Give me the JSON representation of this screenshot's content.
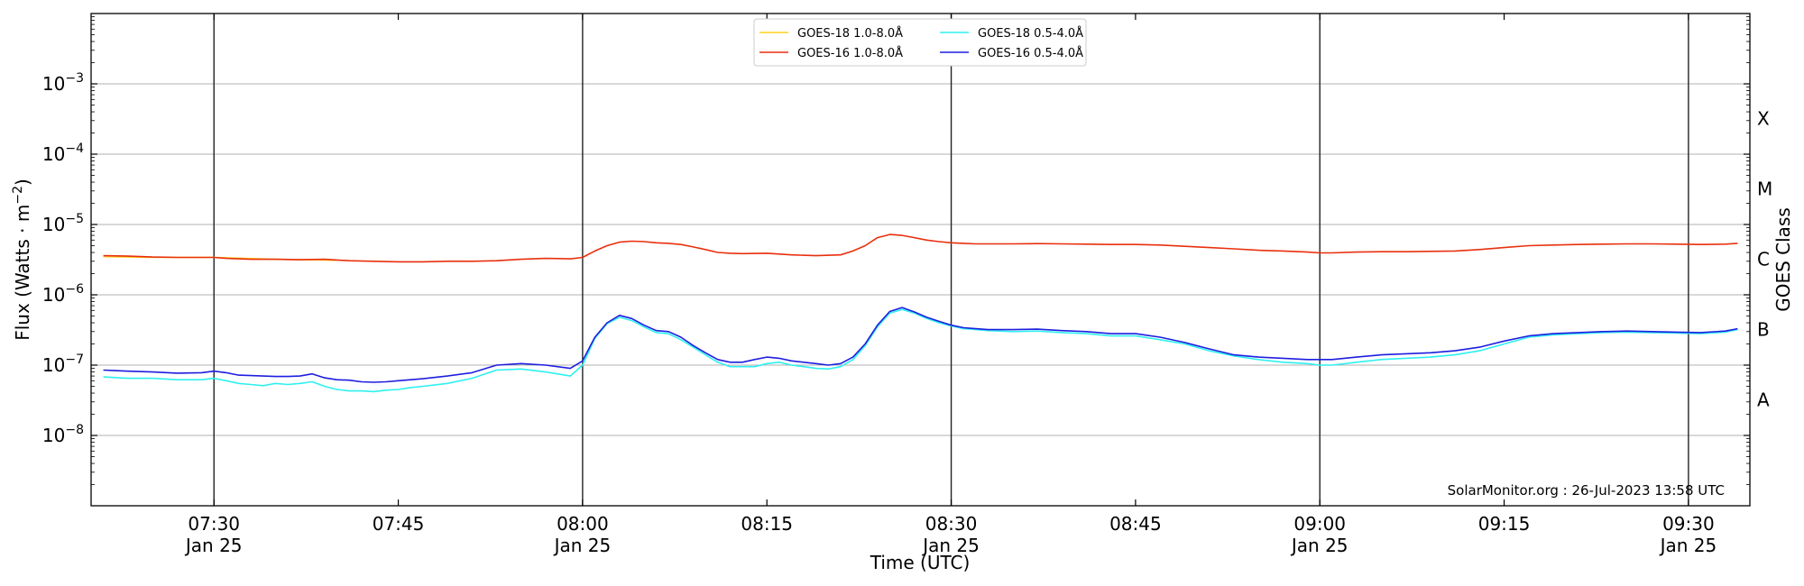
{
  "chart_data": {
    "type": "line",
    "xlabel": "Time (UTC)",
    "ylabel": "Flux (Watts · m⁻²)",
    "ylabel_parts": {
      "main": "Flux (Watts · m",
      "sup": "−2",
      "close": ")"
    },
    "right_ylabel": "GOES Class",
    "yscale": "log",
    "ylim": [
      1e-09,
      0.01
    ],
    "xlim_minutes": [
      440,
      575
    ],
    "y_ticks": [
      {
        "value": 1e-08,
        "base": "10",
        "exp": "−8"
      },
      {
        "value": 1e-07,
        "base": "10",
        "exp": "−7"
      },
      {
        "value": 1e-06,
        "base": "10",
        "exp": "−6"
      },
      {
        "value": 1e-05,
        "base": "10",
        "exp": "−5"
      },
      {
        "value": 0.0001,
        "base": "10",
        "exp": "−4"
      },
      {
        "value": 0.001,
        "base": "10",
        "exp": "−3"
      }
    ],
    "x_ticks": [
      {
        "minute": 450,
        "time": "07:30",
        "date": "Jan 25"
      },
      {
        "minute": 465,
        "time": "07:45",
        "date": ""
      },
      {
        "minute": 480,
        "time": "08:00",
        "date": "Jan 25"
      },
      {
        "minute": 495,
        "time": "08:15",
        "date": ""
      },
      {
        "minute": 510,
        "time": "08:30",
        "date": "Jan 25"
      },
      {
        "minute": 525,
        "time": "08:45",
        "date": ""
      },
      {
        "minute": 540,
        "time": "09:00",
        "date": "Jan 25"
      },
      {
        "minute": 555,
        "time": "09:15",
        "date": ""
      },
      {
        "minute": 570,
        "time": "09:30",
        "date": "Jan 25"
      }
    ],
    "vertical_lines_minutes": [
      450,
      480,
      510,
      540,
      570
    ],
    "goes_classes": [
      {
        "label": "X",
        "value": 0.00032
      },
      {
        "label": "M",
        "value": 3.2e-05
      },
      {
        "label": "C",
        "value": 3.2e-06
      },
      {
        "label": "B",
        "value": 3.2e-07
      },
      {
        "label": "A",
        "value": 3.2e-08
      }
    ],
    "grid": "horizontal",
    "legend_position": "top-center",
    "watermark": "SolarMonitor.org : 26-Jul-2023 13:58 UTC",
    "series": [
      {
        "name": "GOES-18 1.0-8.0Å",
        "color": "#ffd21a",
        "x": [
          441,
          445,
          450,
          455,
          460
        ],
        "values": [
          3.5e-06,
          3.4e-06,
          3.4e-06,
          3.2e-06,
          3.1e-06
        ]
      },
      {
        "name": "GOES-16 1.0-8.0Å",
        "color": "#e8300e",
        "x": [
          441,
          443,
          445,
          447,
          449,
          450,
          451,
          453,
          455,
          457,
          459,
          461,
          463,
          465,
          467,
          469,
          471,
          473,
          475,
          477,
          479,
          480,
          481,
          482,
          483,
          484,
          485,
          486,
          487,
          488,
          489,
          490,
          491,
          492,
          493,
          495,
          497,
          499,
          501,
          502,
          503,
          504,
          505,
          506,
          507,
          508,
          509,
          510,
          511,
          512,
          513,
          515,
          517,
          519,
          521,
          523,
          525,
          527,
          529,
          531,
          533,
          535,
          537,
          539,
          540,
          541,
          543,
          545,
          547,
          549,
          551,
          553,
          555,
          557,
          559,
          561,
          563,
          565,
          567,
          569,
          571,
          573,
          574
        ],
        "values": [
          3.6e-06,
          3.55e-06,
          3.45e-06,
          3.4e-06,
          3.4e-06,
          3.4e-06,
          3.3e-06,
          3.2e-06,
          3.2e-06,
          3.15e-06,
          3.2e-06,
          3.05e-06,
          3e-06,
          2.95e-06,
          2.95e-06,
          3e-06,
          3e-06,
          3.05e-06,
          3.2e-06,
          3.3e-06,
          3.25e-06,
          3.4e-06,
          4.2e-06,
          5e-06,
          5.6e-06,
          5.8e-06,
          5.7e-06,
          5.5e-06,
          5.4e-06,
          5.2e-06,
          4.8e-06,
          4.4e-06,
          4e-06,
          3.9e-06,
          3.85e-06,
          3.9e-06,
          3.7e-06,
          3.6e-06,
          3.7e-06,
          4.2e-06,
          5e-06,
          6.5e-06,
          7.2e-06,
          7e-06,
          6.5e-06,
          6e-06,
          5.7e-06,
          5.5e-06,
          5.4e-06,
          5.3e-06,
          5.3e-06,
          5.3e-06,
          5.35e-06,
          5.3e-06,
          5.25e-06,
          5.2e-06,
          5.2e-06,
          5.1e-06,
          4.9e-06,
          4.7e-06,
          4.5e-06,
          4.3e-06,
          4.2e-06,
          4.05e-06,
          3.95e-06,
          3.95e-06,
          4.05e-06,
          4.1e-06,
          4.1e-06,
          4.15e-06,
          4.2e-06,
          4.4e-06,
          4.7e-06,
          5e-06,
          5.1e-06,
          5.2e-06,
          5.25e-06,
          5.3e-06,
          5.3e-06,
          5.25e-06,
          5.2e-06,
          5.25e-06,
          5.4e-06
        ]
      },
      {
        "name": "GOES-18 0.5-4.0Å",
        "color": "#2ff0f0",
        "x": [
          441,
          443,
          445,
          447,
          449,
          450,
          451,
          452,
          453,
          454,
          455,
          456,
          457,
          458,
          459,
          460,
          461,
          462,
          463,
          464,
          465,
          466,
          467,
          469,
          471,
          473,
          475,
          477,
          479,
          480,
          481,
          482,
          483,
          484,
          485,
          486,
          487,
          488,
          489,
          490,
          491,
          492,
          493,
          494,
          495,
          496,
          497,
          498,
          499,
          500,
          501,
          502,
          503,
          504,
          505,
          506,
          507,
          508,
          509,
          510,
          511,
          512,
          513,
          515,
          517,
          519,
          521,
          523,
          525,
          527,
          529,
          531,
          533,
          535,
          537,
          539,
          540,
          541,
          543,
          545,
          547,
          549,
          551,
          553,
          555,
          557,
          559,
          561,
          563,
          565,
          567,
          569,
          571,
          573,
          574
        ],
        "values": [
          6.8e-08,
          6.5e-08,
          6.5e-08,
          6.2e-08,
          6.2e-08,
          6.5e-08,
          6e-08,
          5.5e-08,
          5.3e-08,
          5.1e-08,
          5.5e-08,
          5.3e-08,
          5.5e-08,
          5.8e-08,
          5e-08,
          4.5e-08,
          4.3e-08,
          4.3e-08,
          4.2e-08,
          4.4e-08,
          4.5e-08,
          4.8e-08,
          5e-08,
          5.5e-08,
          6.5e-08,
          8.5e-08,
          8.8e-08,
          8e-08,
          7e-08,
          1e-07,
          2.4e-07,
          3.9e-07,
          4.8e-07,
          4.3e-07,
          3.5e-07,
          2.9e-07,
          2.8e-07,
          2.3e-07,
          1.8e-07,
          1.4e-07,
          1.1e-07,
          9.5e-08,
          9.5e-08,
          9.5e-08,
          1.05e-07,
          1.1e-07,
          1e-07,
          9.5e-08,
          9e-08,
          8.8e-08,
          9.5e-08,
          1.2e-07,
          1.9e-07,
          3.5e-07,
          5.5e-07,
          6.2e-07,
          5.5e-07,
          4.6e-07,
          4e-07,
          3.6e-07,
          3.3e-07,
          3.2e-07,
          3.1e-07,
          3e-07,
          3.05e-07,
          2.9e-07,
          2.8e-07,
          2.6e-07,
          2.6e-07,
          2.3e-07,
          2e-07,
          1.6e-07,
          1.35e-07,
          1.2e-07,
          1.1e-07,
          1.05e-07,
          1e-07,
          1e-07,
          1.1e-07,
          1.2e-07,
          1.25e-07,
          1.3e-07,
          1.4e-07,
          1.6e-07,
          2e-07,
          2.5e-07,
          2.7e-07,
          2.8e-07,
          2.9e-07,
          2.95e-07,
          2.9e-07,
          2.85e-07,
          2.8e-07,
          2.95e-07,
          3.2e-07
        ]
      },
      {
        "name": "GOES-16 0.5-4.0Å",
        "color": "#1e1ee0",
        "x": [
          441,
          443,
          445,
          447,
          449,
          450,
          451,
          452,
          453,
          454,
          455,
          456,
          457,
          458,
          459,
          460,
          461,
          462,
          463,
          464,
          465,
          466,
          467,
          469,
          471,
          473,
          475,
          477,
          479,
          480,
          481,
          482,
          483,
          484,
          485,
          486,
          487,
          488,
          489,
          490,
          491,
          492,
          493,
          494,
          495,
          496,
          497,
          498,
          499,
          500,
          501,
          502,
          503,
          504,
          505,
          506,
          507,
          508,
          509,
          510,
          511,
          512,
          513,
          515,
          517,
          519,
          521,
          523,
          525,
          527,
          529,
          531,
          533,
          535,
          537,
          539,
          540,
          541,
          543,
          545,
          547,
          549,
          551,
          553,
          555,
          557,
          559,
          561,
          563,
          565,
          567,
          569,
          571,
          573,
          574
        ],
        "values": [
          8.5e-08,
          8.2e-08,
          8e-08,
          7.7e-08,
          7.8e-08,
          8.2e-08,
          7.8e-08,
          7.2e-08,
          7.1e-08,
          7e-08,
          6.9e-08,
          6.9e-08,
          7e-08,
          7.5e-08,
          6.6e-08,
          6.2e-08,
          6.1e-08,
          5.8e-08,
          5.7e-08,
          5.8e-08,
          6e-08,
          6.2e-08,
          6.4e-08,
          7e-08,
          7.8e-08,
          1e-07,
          1.05e-07,
          1e-07,
          9e-08,
          1.15e-07,
          2.5e-07,
          4e-07,
          5.1e-07,
          4.6e-07,
          3.7e-07,
          3.1e-07,
          3e-07,
          2.5e-07,
          1.9e-07,
          1.5e-07,
          1.2e-07,
          1.1e-07,
          1.1e-07,
          1.2e-07,
          1.3e-07,
          1.25e-07,
          1.15e-07,
          1.1e-07,
          1.05e-07,
          1e-07,
          1.05e-07,
          1.3e-07,
          2e-07,
          3.7e-07,
          5.8e-07,
          6.6e-07,
          5.7e-07,
          4.8e-07,
          4.2e-07,
          3.7e-07,
          3.4e-07,
          3.3e-07,
          3.2e-07,
          3.2e-07,
          3.25e-07,
          3.1e-07,
          3e-07,
          2.8e-07,
          2.8e-07,
          2.5e-07,
          2.1e-07,
          1.7e-07,
          1.4e-07,
          1.3e-07,
          1.25e-07,
          1.2e-07,
          1.2e-07,
          1.2e-07,
          1.3e-07,
          1.4e-07,
          1.45e-07,
          1.5e-07,
          1.6e-07,
          1.8e-07,
          2.2e-07,
          2.6e-07,
          2.8e-07,
          2.9e-07,
          3e-07,
          3.05e-07,
          3e-07,
          2.95e-07,
          2.9e-07,
          3.05e-07,
          3.3e-07
        ]
      }
    ]
  }
}
